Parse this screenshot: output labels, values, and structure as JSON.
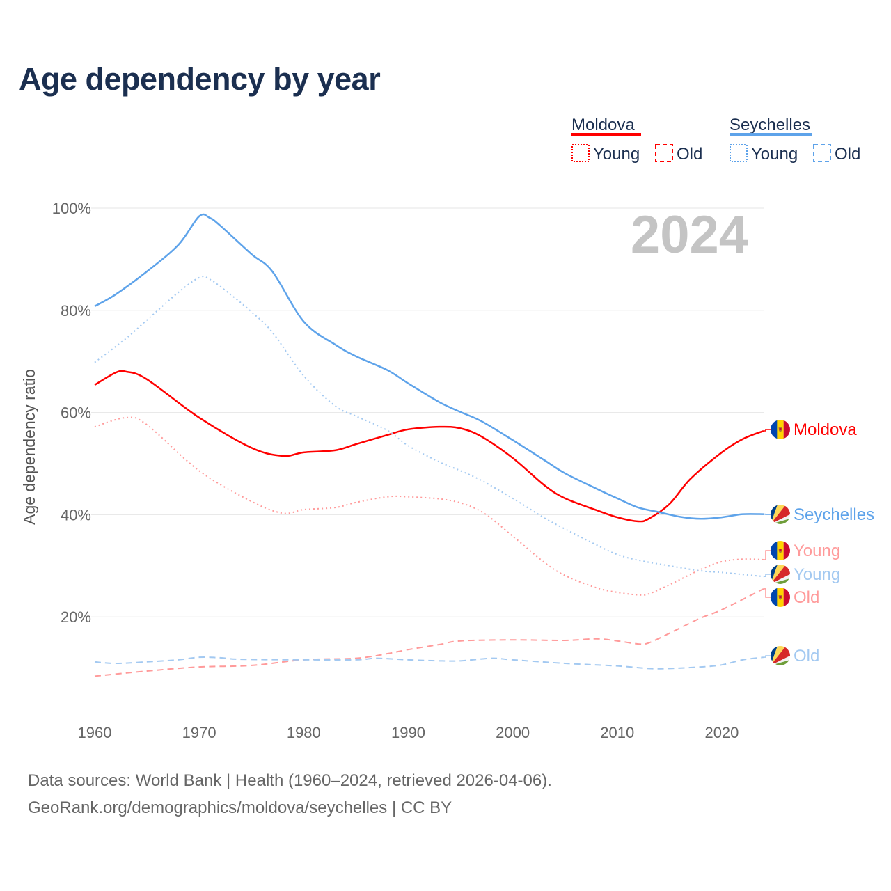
{
  "title": "Age dependency by year",
  "year_watermark": "2024",
  "legend": {
    "groups": [
      {
        "name": "Moldova",
        "color": "#ff0000",
        "young": "Young",
        "old": "Old"
      },
      {
        "name": "Seychelles",
        "color": "#5ea3ea",
        "young": "Young",
        "old": "Old"
      }
    ]
  },
  "footer": {
    "line1": "Data sources: World Bank | Health (1960–2024, retrieved 2026-04-06).",
    "line2": "GeoRank.org/demographics/moldova/seychelles | CC BY"
  },
  "chart_data": {
    "type": "line",
    "title": "Age dependency by year",
    "xlabel": "",
    "ylabel": "Age dependency ratio",
    "xlim": [
      1960,
      2024
    ],
    "ylim": [
      0,
      100
    ],
    "x_ticks": [
      "1960",
      "1970",
      "1980",
      "1990",
      "2000",
      "2010",
      "2020"
    ],
    "y_ticks": [
      "20%",
      "40%",
      "60%",
      "80%",
      "100%"
    ],
    "y_tick_values": [
      20,
      40,
      60,
      80,
      100
    ],
    "grid": true,
    "series": [
      {
        "name": "Moldova",
        "label": "Moldova",
        "style": "solid",
        "color": "#ff0000",
        "flag": "moldova",
        "x": [
          1960,
          1962,
          1963,
          1965,
          1970,
          1975,
          1978,
          1980,
          1983,
          1985,
          1988,
          1990,
          1993,
          1995,
          1997,
          2000,
          2003,
          2005,
          2008,
          2010,
          2012,
          2013,
          2015,
          2017,
          2020,
          2022,
          2024
        ],
        "y": [
          65.4,
          67.8,
          68,
          66.5,
          59,
          53.1,
          51.5,
          52.2,
          52.6,
          53.8,
          55.6,
          56.7,
          57.2,
          56.9,
          55.3,
          51.1,
          45.8,
          43.2,
          40.9,
          39.5,
          38.7,
          39.2,
          42.1,
          47,
          52.2,
          54.8,
          56.4
        ]
      },
      {
        "name": "Seychelles",
        "label": "Seychelles",
        "style": "solid",
        "color": "#5ea3ea",
        "flag": "seychelles",
        "x": [
          1960,
          1962,
          1965,
          1968,
          1970,
          1971,
          1972,
          1975,
          1977,
          1980,
          1983,
          1985,
          1988,
          1990,
          1993,
          1995,
          1997,
          2000,
          2003,
          2005,
          2008,
          2010,
          2012,
          2014,
          2016,
          2018,
          2020,
          2022,
          2024
        ],
        "y": [
          80.8,
          83.1,
          87.6,
          92.8,
          98.4,
          98.1,
          96.6,
          91,
          87.6,
          77.8,
          73.3,
          71,
          68.3,
          65.7,
          62,
          60.1,
          58.3,
          54.6,
          50.7,
          48.1,
          45.1,
          43.2,
          41.4,
          40.5,
          39.6,
          39.2,
          39.5,
          40.1,
          40.1
        ]
      },
      {
        "name": "Moldova Young",
        "label": "Young",
        "style": "dotted",
        "color": "#ff9a9a",
        "flag": "moldova",
        "x": [
          1960,
          1963,
          1965,
          1970,
          1975,
          1978,
          1980,
          1983,
          1985,
          1988,
          1990,
          1994,
          1997,
          2000,
          2003,
          2005,
          2008,
          2010,
          2012,
          2013,
          2015,
          2018,
          2020,
          2022,
          2024
        ],
        "y": [
          57.2,
          59,
          57.6,
          48.6,
          42.6,
          40.3,
          41,
          41.4,
          42.4,
          43.5,
          43.5,
          42.8,
          40.6,
          35.8,
          30.7,
          28.1,
          25.7,
          24.8,
          24.3,
          24.5,
          26.3,
          29.3,
          30.8,
          31.3,
          31.2
        ]
      },
      {
        "name": "Seychelles Young",
        "label": "Young",
        "style": "dotted",
        "color": "#a3c9f1",
        "flag": "seychelles",
        "x": [
          1960,
          1963,
          1965,
          1968,
          1970,
          1971,
          1973,
          1975,
          1977,
          1980,
          1983,
          1985,
          1988,
          1990,
          1993,
          1995,
          1997,
          2000,
          2003,
          2005,
          2008,
          2010,
          2012,
          2015,
          2018,
          2020,
          2024
        ],
        "y": [
          69.8,
          74.5,
          78.1,
          83.5,
          86.4,
          86.1,
          83.1,
          79.7,
          75.7,
          67.2,
          61.3,
          59.3,
          56.5,
          53.5,
          50.3,
          48.6,
          46.7,
          43.2,
          39.4,
          37.2,
          34.1,
          32.2,
          31.1,
          30,
          29,
          28.7,
          27.9
        ]
      },
      {
        "name": "Moldova Old",
        "label": "Old",
        "style": "dashed",
        "color": "#ff9a9a",
        "flag": "moldova",
        "x": [
          1960,
          1965,
          1970,
          1975,
          1980,
          1985,
          1988,
          1990,
          1993,
          1995,
          2000,
          2005,
          2008,
          2010,
          2012,
          2013,
          2015,
          2018,
          2020,
          2024
        ],
        "y": [
          8.4,
          9.4,
          10.2,
          10.5,
          11.6,
          11.9,
          12.8,
          13.6,
          14.6,
          15.3,
          15.5,
          15.4,
          15.7,
          15.3,
          14.7,
          14.9,
          16.8,
          19.8,
          21.4,
          25.5
        ]
      },
      {
        "name": "Seychelles Old",
        "label": "Old",
        "style": "dashed",
        "color": "#a3c9f1",
        "flag": "seychelles",
        "x": [
          1960,
          1962,
          1965,
          1968,
          1970,
          1972,
          1974,
          1980,
          1985,
          1987,
          1990,
          1993,
          1995,
          1998,
          2000,
          2005,
          2010,
          2013,
          2015,
          2018,
          2020,
          2022,
          2024
        ],
        "y": [
          11.2,
          10.9,
          11.2,
          11.6,
          12.1,
          12,
          11.7,
          11.6,
          11.6,
          11.9,
          11.6,
          11.4,
          11.4,
          11.9,
          11.6,
          10.9,
          10.4,
          9.9,
          9.9,
          10.2,
          10.6,
          11.6,
          12.1
        ]
      }
    ]
  }
}
